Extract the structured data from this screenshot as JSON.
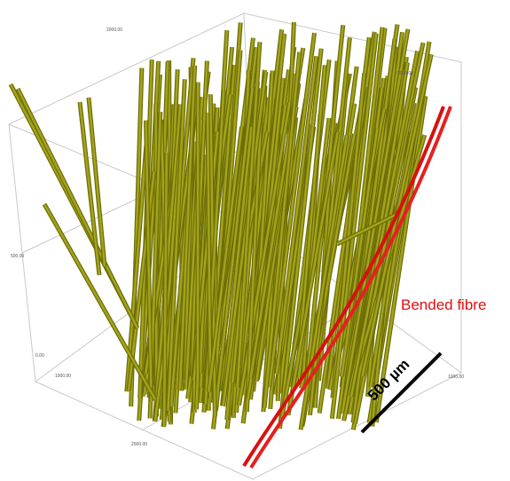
{
  "annotation": {
    "label": "Bended fibre",
    "scale_bar": "500 µm"
  },
  "axis_labels": [
    "2000.00",
    "2000.00",
    "500.00",
    "0.00",
    "1000.00",
    "2000.00",
    "1000.00"
  ]
}
